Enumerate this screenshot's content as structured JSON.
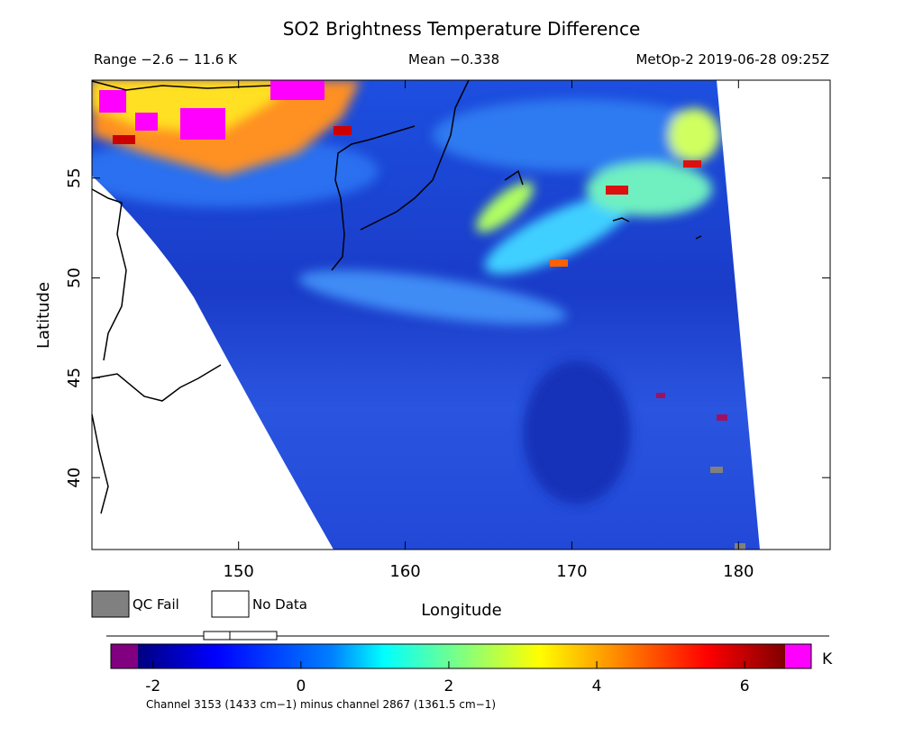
{
  "title": "SO2 Brightness Temperature Difference",
  "info": {
    "range": "Range −2.6 − 11.6 K",
    "mean": "Mean −0.338",
    "satellite": "MetOp-2 2019-06-28 09:25Z"
  },
  "map": {
    "xlabel": "Longitude",
    "ylabel": "Latitude",
    "xlim": [
      141.2,
      185.5
    ],
    "ylim": [
      36.4,
      59.9
    ],
    "xticks": [
      150,
      160,
      170,
      180
    ],
    "yticks": [
      40,
      45,
      50,
      55
    ]
  },
  "legend": {
    "qc_fail": "QC Fail",
    "no_data": "No Data"
  },
  "colorbar": {
    "lim": [
      -2.57,
      6.9
    ],
    "ticks": [
      -2,
      0,
      2,
      4,
      6
    ],
    "unit": "K",
    "caption": "Channel 3153 (1433 cm−1) minus channel 2867 (1361.5 cm−1)"
  }
}
